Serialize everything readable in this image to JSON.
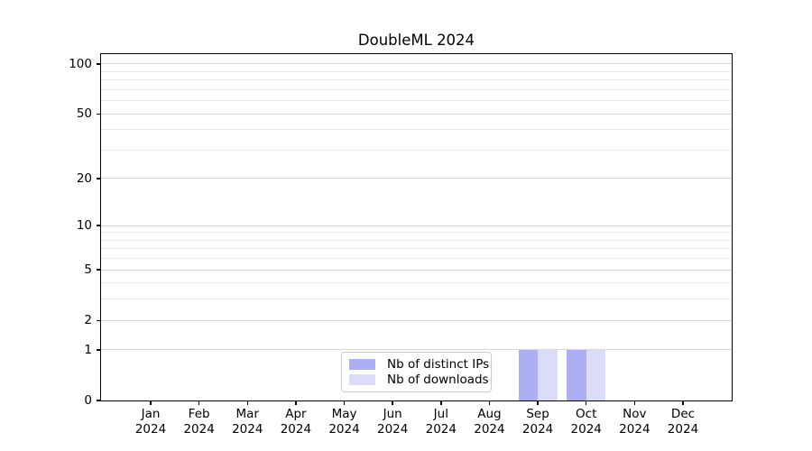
{
  "chart_data": {
    "type": "bar",
    "title": "DoubleML 2024",
    "year": "2024",
    "months": [
      "Jan",
      "Feb",
      "Mar",
      "Apr",
      "May",
      "Jun",
      "Jul",
      "Aug",
      "Sep",
      "Oct",
      "Nov",
      "Dec"
    ],
    "categories": [
      "Jan 2024",
      "Feb 2024",
      "Mar 2024",
      "Apr 2024",
      "May 2024",
      "Jun 2024",
      "Jul 2024",
      "Aug 2024",
      "Sep 2024",
      "Oct 2024",
      "Nov 2024",
      "Dec 2024"
    ],
    "series": [
      {
        "name": "Nb of distinct IPs",
        "color": "#acaff4",
        "values": [
          0,
          0,
          0,
          0,
          0,
          0,
          0,
          0,
          1,
          1,
          0,
          0
        ]
      },
      {
        "name": "Nb of downloads",
        "color": "#dbdcf8",
        "values": [
          0,
          0,
          0,
          0,
          0,
          0,
          0,
          0,
          1,
          1,
          0,
          0
        ]
      }
    ],
    "yscale": "log1p",
    "ylim": [
      0,
      114.7
    ],
    "yticks_major": [
      0,
      1,
      2,
      5,
      10,
      20,
      50,
      100
    ],
    "yticks_minor": [
      3,
      4,
      6,
      7,
      8,
      9,
      30,
      40,
      60,
      70,
      80,
      90
    ],
    "grid": true,
    "legend_position": "lower center",
    "colors": {
      "grid_major": "#d6d6d6",
      "grid_minor": "#ececec",
      "spine": "#000000",
      "text": "#000000",
      "legend_border": "#cccccc",
      "background": "#ffffff"
    }
  }
}
